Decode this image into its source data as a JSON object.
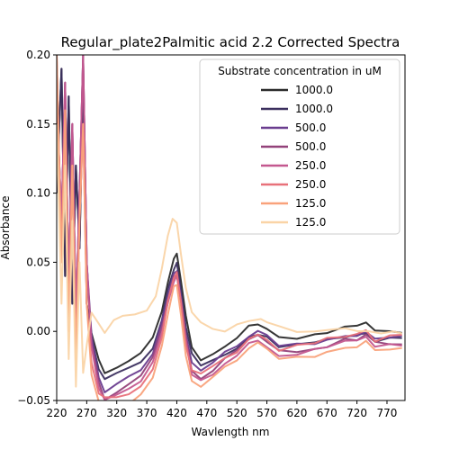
{
  "chart_data": {
    "type": "line",
    "title": "Regular_plate2Palmitic acid 2.2 Corrected Spectra",
    "xlabel": "Wavlength nm",
    "ylabel": "Absorbance",
    "xlim": [
      220,
      800
    ],
    "ylim": [
      -0.05,
      0.2
    ],
    "xticks": [
      220,
      270,
      320,
      370,
      420,
      470,
      520,
      570,
      620,
      670,
      720,
      770
    ],
    "yticks": [
      -0.05,
      0.0,
      0.05,
      0.1,
      0.15,
      0.2
    ],
    "ytick_labels": [
      "−0.05",
      "0.00",
      "0.05",
      "0.10",
      "0.15",
      "0.20"
    ],
    "grid": false,
    "legend": {
      "title": "Substrate concentration in uM",
      "placement": "top-right"
    },
    "series": [
      {
        "name": "1000.0",
        "color": "#2b2b2b",
        "preset": "dark",
        "offset": 0.0
      },
      {
        "name": "1000.0",
        "color": "#3b2f5e",
        "preset": "dark",
        "offset": -0.006
      },
      {
        "name": "500.0",
        "color": "#6a3d8f",
        "preset": "mid",
        "offset": -0.004
      },
      {
        "name": "500.0",
        "color": "#93427a",
        "preset": "mid",
        "offset": -0.008
      },
      {
        "name": "250.0",
        "color": "#c4588f",
        "preset": "mid",
        "offset": -0.01
      },
      {
        "name": "250.0",
        "color": "#e8717a",
        "preset": "low",
        "offset": -0.004
      },
      {
        "name": "125.0",
        "color": "#f9a27b",
        "preset": "low",
        "offset": -0.012
      },
      {
        "name": "125.0",
        "color": "#fad4a6",
        "preset": "light",
        "offset": 0.0
      }
    ],
    "presets": {
      "dark": [
        [
          220,
          0.1
        ],
        [
          228,
          0.19
        ],
        [
          234,
          0.04
        ],
        [
          240,
          0.17
        ],
        [
          246,
          0.02
        ],
        [
          252,
          0.12
        ],
        [
          258,
          0.06
        ],
        [
          264,
          0.18
        ],
        [
          270,
          0.02
        ],
        [
          278,
          0.0
        ],
        [
          290,
          -0.02
        ],
        [
          300,
          -0.03
        ],
        [
          320,
          -0.025
        ],
        [
          340,
          -0.02
        ],
        [
          360,
          -0.015
        ],
        [
          380,
          -0.005
        ],
        [
          395,
          0.015
        ],
        [
          405,
          0.035
        ],
        [
          415,
          0.052
        ],
        [
          420,
          0.055
        ],
        [
          427,
          0.035
        ],
        [
          435,
          0.01
        ],
        [
          445,
          -0.01
        ],
        [
          460,
          -0.02
        ],
        [
          480,
          -0.015
        ],
        [
          500,
          -0.01
        ],
        [
          520,
          -0.005
        ],
        [
          540,
          0.003
        ],
        [
          555,
          0.005
        ],
        [
          570,
          0.003
        ],
        [
          590,
          -0.004
        ],
        [
          620,
          -0.004
        ],
        [
          650,
          -0.003
        ],
        [
          670,
          -0.001
        ],
        [
          700,
          0.002
        ],
        [
          720,
          0.003
        ],
        [
          735,
          0.005
        ],
        [
          750,
          0.0
        ],
        [
          775,
          0.0
        ],
        [
          795,
          0.0
        ]
      ],
      "mid": [
        [
          220,
          0.17
        ],
        [
          228,
          0.08
        ],
        [
          234,
          0.18
        ],
        [
          240,
          0.03
        ],
        [
          246,
          0.15
        ],
        [
          252,
          0.01
        ],
        [
          258,
          0.1
        ],
        [
          264,
          0.2
        ],
        [
          270,
          0.05
        ],
        [
          278,
          0.0
        ],
        [
          290,
          -0.03
        ],
        [
          300,
          -0.04
        ],
        [
          320,
          -0.035
        ],
        [
          340,
          -0.03
        ],
        [
          360,
          -0.025
        ],
        [
          380,
          -0.012
        ],
        [
          395,
          0.01
        ],
        [
          405,
          0.03
        ],
        [
          415,
          0.046
        ],
        [
          420,
          0.049
        ],
        [
          427,
          0.03
        ],
        [
          435,
          0.003
        ],
        [
          445,
          -0.02
        ],
        [
          460,
          -0.025
        ],
        [
          480,
          -0.02
        ],
        [
          500,
          -0.012
        ],
        [
          520,
          -0.007
        ],
        [
          540,
          0.001
        ],
        [
          555,
          0.004
        ],
        [
          570,
          0.0
        ],
        [
          590,
          -0.007
        ],
        [
          620,
          -0.006
        ],
        [
          650,
          -0.004
        ],
        [
          670,
          -0.002
        ],
        [
          700,
          0.002
        ],
        [
          720,
          0.002
        ],
        [
          735,
          0.005
        ],
        [
          750,
          -0.001
        ],
        [
          775,
          0.0
        ],
        [
          795,
          0.0
        ]
      ],
      "low": [
        [
          220,
          0.2
        ],
        [
          228,
          0.05
        ],
        [
          234,
          0.16
        ],
        [
          240,
          0.0
        ],
        [
          246,
          0.12
        ],
        [
          252,
          -0.02
        ],
        [
          258,
          0.08
        ],
        [
          264,
          0.15
        ],
        [
          270,
          0.02
        ],
        [
          278,
          -0.02
        ],
        [
          290,
          -0.04
        ],
        [
          300,
          -0.045
        ],
        [
          320,
          -0.045
        ],
        [
          340,
          -0.042
        ],
        [
          360,
          -0.035
        ],
        [
          380,
          -0.022
        ],
        [
          395,
          0.0
        ],
        [
          405,
          0.025
        ],
        [
          415,
          0.044
        ],
        [
          420,
          0.047
        ],
        [
          427,
          0.025
        ],
        [
          435,
          -0.005
        ],
        [
          445,
          -0.025
        ],
        [
          460,
          -0.028
        ],
        [
          480,
          -0.022
        ],
        [
          500,
          -0.015
        ],
        [
          520,
          -0.01
        ],
        [
          540,
          0.0
        ],
        [
          555,
          0.003
        ],
        [
          570,
          -0.002
        ],
        [
          590,
          -0.009
        ],
        [
          620,
          -0.007
        ],
        [
          650,
          -0.005
        ],
        [
          670,
          -0.002
        ],
        [
          700,
          0.001
        ],
        [
          720,
          0.002
        ],
        [
          735,
          0.006
        ],
        [
          750,
          -0.002
        ],
        [
          775,
          0.0
        ],
        [
          795,
          0.0
        ]
      ],
      "light": [
        [
          220,
          0.15
        ],
        [
          228,
          0.02
        ],
        [
          234,
          0.12
        ],
        [
          240,
          -0.02
        ],
        [
          246,
          0.08
        ],
        [
          252,
          -0.04
        ],
        [
          258,
          0.05
        ],
        [
          264,
          -0.03
        ],
        [
          270,
          -0.01
        ],
        [
          278,
          0.015
        ],
        [
          290,
          0.005
        ],
        [
          300,
          0.0
        ],
        [
          315,
          0.008
        ],
        [
          330,
          0.01
        ],
        [
          350,
          0.012
        ],
        [
          370,
          0.016
        ],
        [
          385,
          0.025
        ],
        [
          395,
          0.045
        ],
        [
          405,
          0.07
        ],
        [
          413,
          0.081
        ],
        [
          420,
          0.078
        ],
        [
          427,
          0.055
        ],
        [
          435,
          0.03
        ],
        [
          445,
          0.015
        ],
        [
          460,
          0.008
        ],
        [
          480,
          0.003
        ],
        [
          500,
          0.0
        ],
        [
          520,
          0.004
        ],
        [
          540,
          0.006
        ],
        [
          560,
          0.008
        ],
        [
          570,
          0.007
        ],
        [
          590,
          0.003
        ],
        [
          620,
          0.001
        ],
        [
          650,
          0.0
        ],
        [
          680,
          0.0
        ],
        [
          700,
          0.001
        ],
        [
          720,
          0.0
        ],
        [
          740,
          0.001
        ],
        [
          760,
          0.0
        ],
        [
          780,
          0.001
        ],
        [
          795,
          0.0
        ]
      ]
    }
  }
}
